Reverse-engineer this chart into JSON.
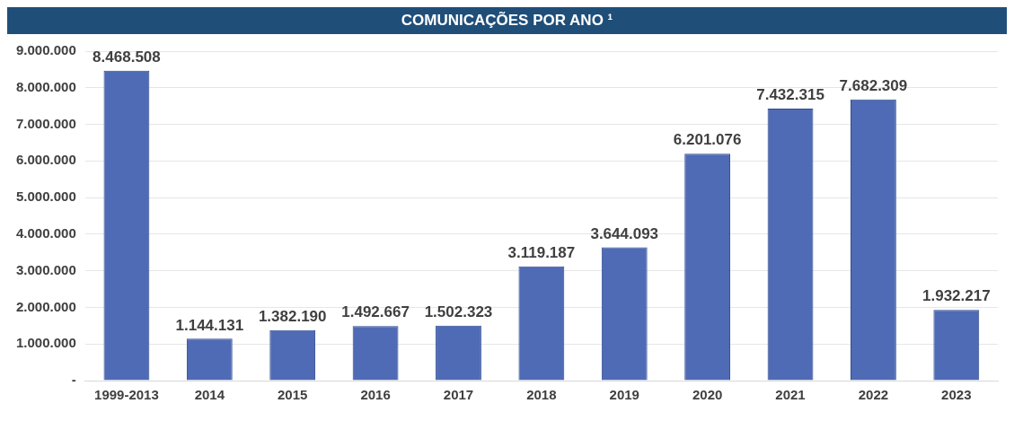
{
  "chart_data": {
    "type": "bar",
    "title": "COMUNICAÇÕES POR ANO ¹",
    "categories": [
      "1999-2013",
      "2014",
      "2015",
      "2016",
      "2017",
      "2018",
      "2019",
      "2020",
      "2021",
      "2022",
      "2023"
    ],
    "values": [
      8468508,
      1144131,
      1382190,
      1492667,
      1502323,
      3119187,
      3644093,
      6201076,
      7432315,
      7682309,
      1932217
    ],
    "value_labels": [
      "8.468.508",
      "1.144.131",
      "1.382.190",
      "1.492.667",
      "1.502.323",
      "3.119.187",
      "3.644.093",
      "6.201.076",
      "7.432.315",
      "7.682.309",
      "1.932.217"
    ],
    "color": "#4f6bb5",
    "ylim": [
      0,
      9000000
    ],
    "yticks": [
      {
        "value": 0,
        "label": "-"
      },
      {
        "value": 1000000,
        "label": "1.000.000"
      },
      {
        "value": 2000000,
        "label": "2.000.000"
      },
      {
        "value": 3000000,
        "label": "3.000.000"
      },
      {
        "value": 4000000,
        "label": "4.000.000"
      },
      {
        "value": 5000000,
        "label": "5.000.000"
      },
      {
        "value": 6000000,
        "label": "6.000.000"
      },
      {
        "value": 7000000,
        "label": "7.000.000"
      },
      {
        "value": 8000000,
        "label": "8.000.000"
      },
      {
        "value": 9000000,
        "label": "9.000.000"
      }
    ],
    "grid": "y"
  }
}
